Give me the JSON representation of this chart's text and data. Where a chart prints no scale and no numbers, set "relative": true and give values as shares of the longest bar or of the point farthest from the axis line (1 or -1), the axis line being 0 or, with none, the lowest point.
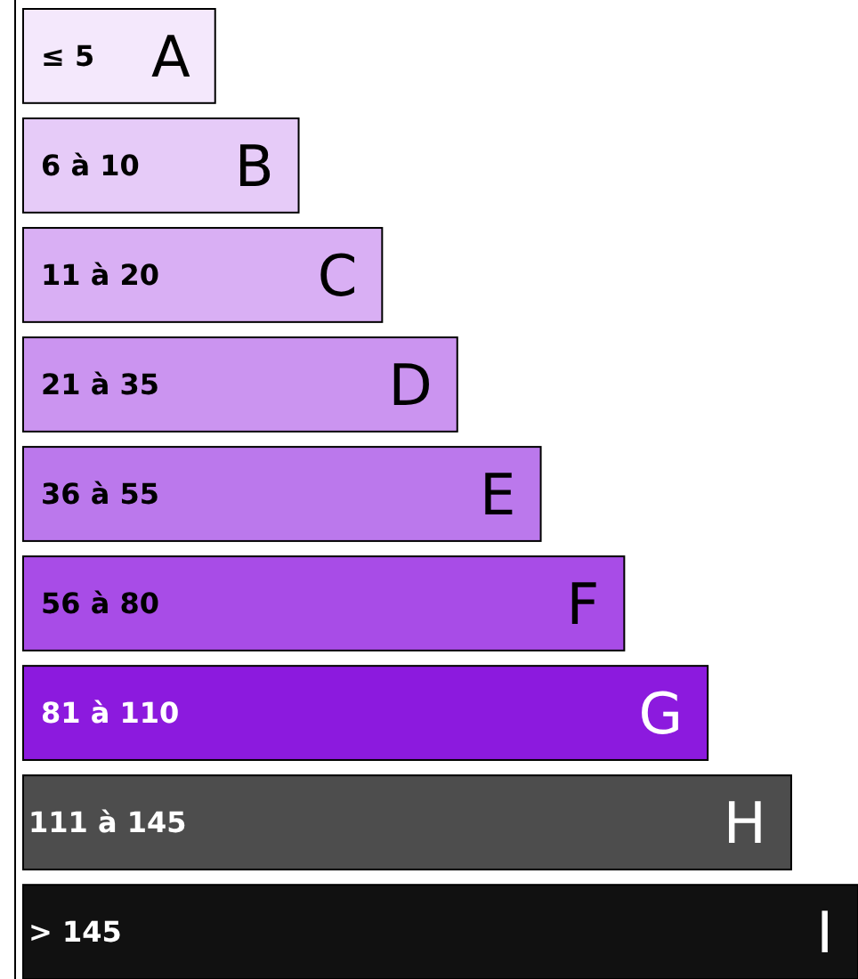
{
  "chart_data": {
    "type": "bar",
    "orientation": "horizontal",
    "relative": true,
    "categories": [
      "≤ 5",
      "6 à 10",
      "11 à 20",
      "21 à 35",
      "36 à 55",
      "56 à 80",
      "81 à 110",
      "111 à 145",
      "> 145"
    ],
    "values": [
      0.23,
      0.33,
      0.43,
      0.52,
      0.62,
      0.72,
      0.82,
      0.92,
      1
    ],
    "colors": [
      "#f4e8fc",
      "#e6cbf8",
      "#d9aff4",
      "#cb94f0",
      "#bb78ec",
      "#a84ce7",
      "#8c1ade",
      "#4d4d4d",
      "#111111"
    ],
    "annotations": [
      {
        "text": "A",
        "y": "≤ 5"
      },
      {
        "text": "B",
        "y": "6 à 10"
      },
      {
        "text": "C",
        "y": "11 à 20"
      },
      {
        "text": "D",
        "y": "21 à 35"
      },
      {
        "text": "E",
        "y": "36 à 55"
      },
      {
        "text": "F",
        "y": "56 à 80"
      },
      {
        "text": "G",
        "y": "81 à 110"
      },
      {
        "text": "H",
        "y": "111 à 145"
      },
      {
        "text": "I",
        "y": "> 145"
      }
    ]
  }
}
